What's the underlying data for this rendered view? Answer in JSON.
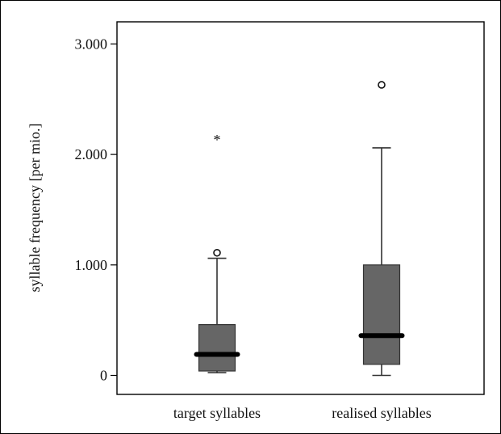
{
  "chart_data": {
    "type": "boxplot",
    "title": "",
    "xlabel": "",
    "ylabel": "syllable frequency [per mio.]",
    "ylim": [
      -170,
      3100
    ],
    "y_ticks": [
      0,
      1000,
      2000,
      3000
    ],
    "y_tick_labels": [
      "0",
      "1.000",
      "2.000",
      "3.000"
    ],
    "categories": [
      "target syllables",
      "realised syllables"
    ],
    "series": [
      {
        "name": "target syllables",
        "min": 25,
        "q1": 40,
        "median": 190,
        "q3": 460,
        "max": 1060,
        "outliers": [
          1110
        ],
        "extremes": [
          2140
        ]
      },
      {
        "name": "realised syllables",
        "min": 0,
        "q1": 100,
        "median": 360,
        "q3": 1000,
        "max": 2060,
        "outliers": [
          2630
        ],
        "extremes": []
      }
    ],
    "grid": false,
    "legend": "none",
    "colors": {
      "box_fill": "#666666",
      "box_stroke": "#333333",
      "median": "#000000",
      "axis": "#000000",
      "background": "#ffffff"
    }
  }
}
